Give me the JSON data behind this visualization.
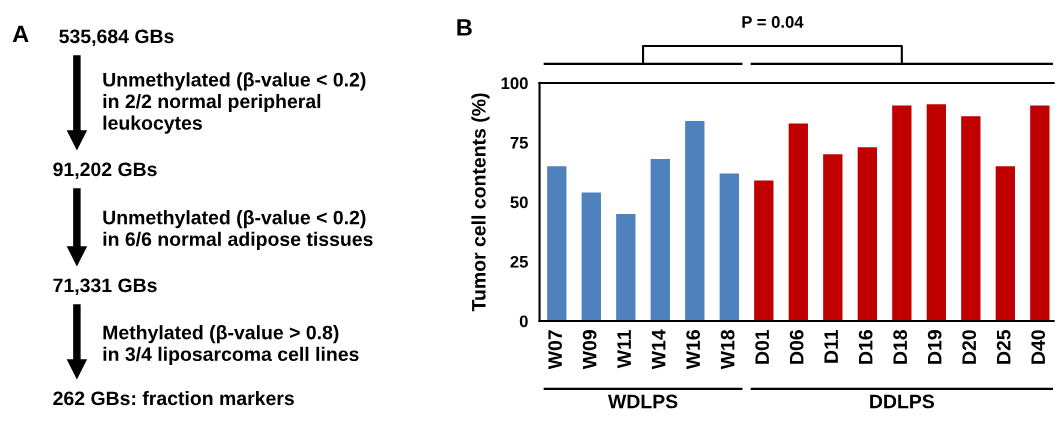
{
  "chart_data": [
    {
      "type": "other",
      "title": "A",
      "annotations": [
        "535,684 GBs",
        "Unmethylated (β-value < 0.2)\nin 2/2 normal peripheral\nleukocytes",
        "91,202 GBs",
        "Unmethylated (β-value < 0.2)\nin 6/6 normal adipose tissues",
        "71,331 GBs",
        "Methylated (β-value > 0.8)\nin 3/4 liposarcoma cell lines",
        "262 GBs: fraction markers"
      ]
    },
    {
      "type": "bar",
      "title": "B",
      "ylabel": "Tumor cell contents (%)",
      "categories": [
        "W07",
        "W09",
        "W11",
        "W14",
        "W16",
        "W18",
        "D01",
        "D06",
        "D11",
        "D16",
        "D18",
        "D19",
        "D20",
        "D25",
        "D40"
      ],
      "values": [
        65,
        54,
        45,
        68,
        84,
        62,
        59,
        83,
        70,
        73,
        90.5,
        91,
        86,
        65,
        90.5
      ],
      "colors": [
        "#4f81bd",
        "#4f81bd",
        "#4f81bd",
        "#4f81bd",
        "#4f81bd",
        "#4f81bd",
        "#c00000",
        "#c00000",
        "#c00000",
        "#c00000",
        "#c00000",
        "#c00000",
        "#c00000",
        "#c00000",
        "#c00000"
      ],
      "ylim": [
        0,
        100
      ],
      "yticks": [
        0,
        25,
        50,
        75,
        100
      ],
      "grid": false,
      "legend": false,
      "annotations": [
        "P = 0.04",
        "WDLPS",
        "DDLPS"
      ]
    }
  ]
}
